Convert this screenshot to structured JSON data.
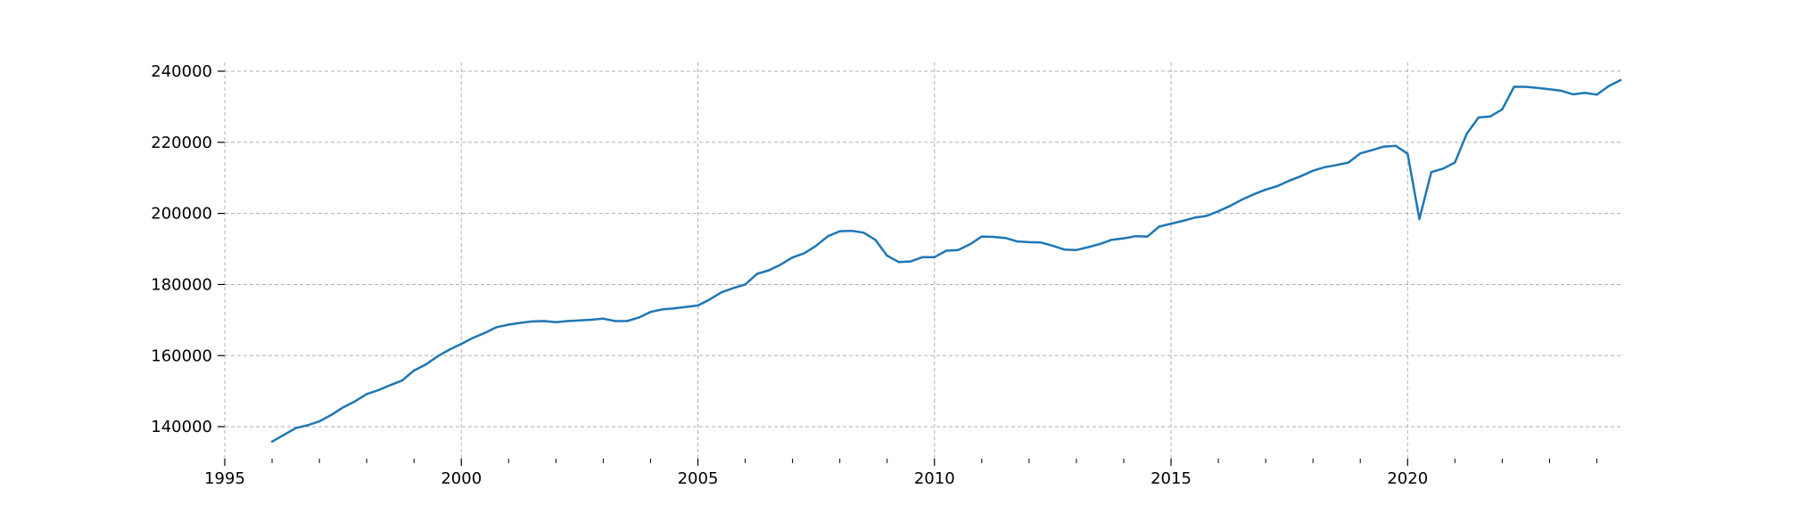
{
  "chart_data": {
    "type": "line",
    "title": "",
    "xlabel": "",
    "ylabel": "",
    "xlim": [
      1995,
      2024.5
    ],
    "ylim": [
      131000,
      242500
    ],
    "grid": true,
    "x_ticks": [
      {
        "value": 1995,
        "label": "1995"
      },
      {
        "value": 2000,
        "label": "2000"
      },
      {
        "value": 2005,
        "label": "2005"
      },
      {
        "value": 2010,
        "label": "2010"
      },
      {
        "value": 2015,
        "label": "2015"
      },
      {
        "value": 2020,
        "label": "2020"
      }
    ],
    "x_minor_ticks": [
      1996,
      1997,
      1998,
      1999,
      2001,
      2002,
      2003,
      2004,
      2006,
      2007,
      2008,
      2009,
      2011,
      2012,
      2013,
      2014,
      2016,
      2017,
      2018,
      2019,
      2021,
      2022,
      2023,
      2024
    ],
    "y_ticks": [
      {
        "value": 140000,
        "label": "140000"
      },
      {
        "value": 160000,
        "label": "160000"
      },
      {
        "value": 180000,
        "label": "180000"
      },
      {
        "value": 200000,
        "label": "200000"
      },
      {
        "value": 220000,
        "label": "220000"
      },
      {
        "value": 240000,
        "label": "240000"
      }
    ],
    "series": [
      {
        "color": "#1f77b4",
        "points": [
          [
            1996.0,
            135800
          ],
          [
            1996.25,
            137700
          ],
          [
            1996.5,
            139600
          ],
          [
            1996.75,
            140400
          ],
          [
            1997.0,
            141500
          ],
          [
            1997.25,
            143300
          ],
          [
            1997.5,
            145400
          ],
          [
            1997.75,
            147100
          ],
          [
            1998.0,
            149200
          ],
          [
            1998.25,
            150300
          ],
          [
            1998.5,
            151700
          ],
          [
            1998.75,
            153000
          ],
          [
            1999.0,
            155800
          ],
          [
            1999.25,
            157500
          ],
          [
            1999.5,
            159800
          ],
          [
            1999.75,
            161700
          ],
          [
            2000.0,
            163300
          ],
          [
            2000.25,
            165000
          ],
          [
            2000.5,
            166400
          ],
          [
            2000.75,
            168000
          ],
          [
            2001.0,
            168700
          ],
          [
            2001.25,
            169200
          ],
          [
            2001.5,
            169600
          ],
          [
            2001.75,
            169700
          ],
          [
            2002.0,
            169400
          ],
          [
            2002.25,
            169700
          ],
          [
            2002.5,
            169900
          ],
          [
            2002.75,
            170100
          ],
          [
            2003.0,
            170400
          ],
          [
            2003.25,
            169700
          ],
          [
            2003.5,
            169700
          ],
          [
            2003.75,
            170700
          ],
          [
            2004.0,
            172300
          ],
          [
            2004.25,
            173000
          ],
          [
            2004.5,
            173300
          ],
          [
            2004.75,
            173700
          ],
          [
            2005.0,
            174100
          ],
          [
            2005.25,
            175800
          ],
          [
            2005.5,
            177800
          ],
          [
            2005.75,
            179000
          ],
          [
            2006.0,
            180000
          ],
          [
            2006.25,
            183000
          ],
          [
            2006.5,
            184000
          ],
          [
            2006.75,
            185600
          ],
          [
            2007.0,
            187600
          ],
          [
            2007.25,
            188800
          ],
          [
            2007.5,
            190900
          ],
          [
            2007.75,
            193600
          ],
          [
            2008.0,
            195000
          ],
          [
            2008.25,
            195100
          ],
          [
            2008.5,
            194600
          ],
          [
            2008.75,
            192600
          ],
          [
            2009.0,
            188100
          ],
          [
            2009.25,
            186300
          ],
          [
            2009.5,
            186500
          ],
          [
            2009.75,
            187700
          ],
          [
            2010.0,
            187700
          ],
          [
            2010.25,
            189500
          ],
          [
            2010.5,
            189700
          ],
          [
            2010.75,
            191300
          ],
          [
            2011.0,
            193500
          ],
          [
            2011.25,
            193400
          ],
          [
            2011.5,
            193100
          ],
          [
            2011.75,
            192100
          ],
          [
            2012.0,
            191900
          ],
          [
            2012.25,
            191800
          ],
          [
            2012.5,
            190900
          ],
          [
            2012.75,
            189800
          ],
          [
            2013.0,
            189700
          ],
          [
            2013.25,
            190500
          ],
          [
            2013.5,
            191400
          ],
          [
            2013.75,
            192600
          ],
          [
            2014.0,
            193000
          ],
          [
            2014.25,
            193600
          ],
          [
            2014.5,
            193500
          ],
          [
            2014.75,
            196300
          ],
          [
            2015.0,
            197100
          ],
          [
            2015.25,
            197900
          ],
          [
            2015.5,
            198800
          ],
          [
            2015.75,
            199300
          ],
          [
            2016.0,
            200600
          ],
          [
            2016.25,
            202100
          ],
          [
            2016.5,
            203900
          ],
          [
            2016.75,
            205400
          ],
          [
            2017.0,
            206700
          ],
          [
            2017.25,
            207700
          ],
          [
            2017.5,
            209200
          ],
          [
            2017.75,
            210500
          ],
          [
            2018.0,
            212000
          ],
          [
            2018.25,
            213000
          ],
          [
            2018.5,
            213600
          ],
          [
            2018.75,
            214300
          ],
          [
            2019.0,
            216900
          ],
          [
            2019.25,
            217800
          ],
          [
            2019.5,
            218800
          ],
          [
            2019.75,
            219000
          ],
          [
            2020.0,
            216800
          ],
          [
            2020.25,
            198400
          ],
          [
            2020.5,
            211600
          ],
          [
            2020.75,
            212600
          ],
          [
            2021.0,
            214300
          ],
          [
            2021.25,
            222400
          ],
          [
            2021.5,
            227000
          ],
          [
            2021.75,
            227300
          ],
          [
            2022.0,
            229300
          ],
          [
            2022.25,
            235600
          ],
          [
            2022.5,
            235600
          ],
          [
            2022.75,
            235300
          ],
          [
            2023.0,
            234900
          ],
          [
            2023.25,
            234500
          ],
          [
            2023.5,
            233500
          ],
          [
            2023.75,
            233900
          ],
          [
            2024.0,
            233400
          ],
          [
            2024.25,
            235800
          ],
          [
            2024.5,
            237500
          ]
        ]
      }
    ]
  }
}
